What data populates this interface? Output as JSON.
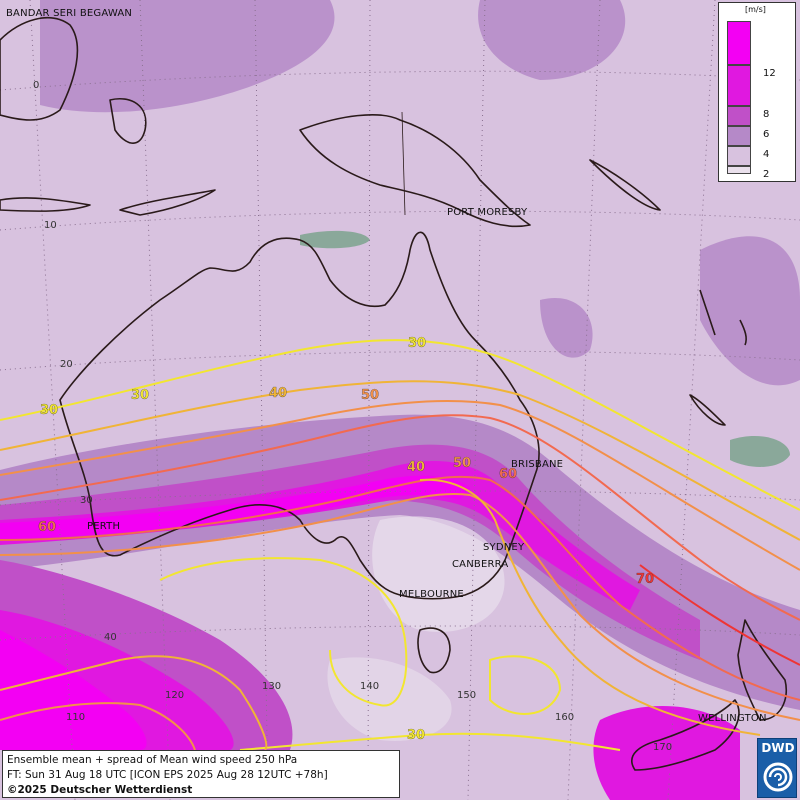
{
  "map": {
    "title": "Ensemble mean + spread of Mean wind speed 250 hPa",
    "forecast_time": "FT: Sun 31 Aug 18 UTC [ICON EPS 2025 Aug 28 12UTC +78h]",
    "copyright": "©2025 Deutscher Wetterdienst",
    "logo_text": "DWD"
  },
  "legend": {
    "unit": "[m/s]",
    "levels": [
      "12",
      "8",
      "6",
      "4",
      "2"
    ],
    "colors": [
      "#f300f3",
      "#e018e0",
      "#c050c8",
      "#b589c8",
      "#d8c2df",
      "#eae0ec"
    ]
  },
  "cities": [
    "BANDAR SERI BEGAWAN",
    "PORT MORESBY",
    "BRISBANE",
    "PERTH",
    "SYDNEY",
    "CANBERRA",
    "MELBOURNE",
    "WELLINGTON"
  ],
  "latitude_ticks": [
    "0",
    "10",
    "20",
    "30",
    "40"
  ],
  "longitude_ticks": [
    "110",
    "120",
    "130",
    "140",
    "150",
    "160",
    "170"
  ],
  "contour_labels": [
    "30",
    "30",
    "30",
    "40",
    "50",
    "40",
    "50",
    "60",
    "60",
    "70",
    "30"
  ],
  "contour_colors": {
    "30": "#f2e630",
    "40": "#f0b437",
    "50": "#f2904a",
    "60": "#f26a50",
    "70": "#ee3535"
  }
}
